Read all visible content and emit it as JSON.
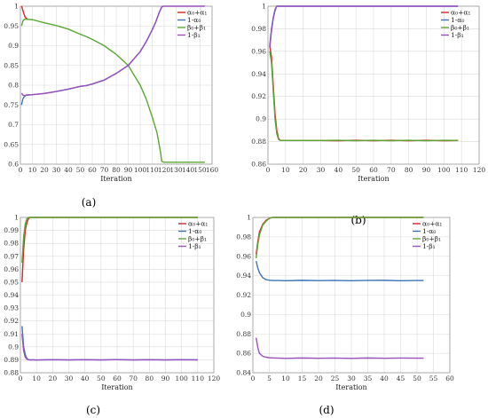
{
  "colors": {
    "alpha_sum": "#d62728",
    "one_minus_alpha0": "#3a74b7",
    "beta_sum": "#5aa832",
    "one_minus_beta1": "#9b4fbd",
    "grid": "#d9d9d9",
    "axis": "#999999"
  },
  "chart_data": [
    {
      "id": "a",
      "type": "line",
      "caption": "(a)",
      "title": "",
      "xlabel": "Iteration",
      "ylabel": "",
      "xlim": [
        0,
        160
      ],
      "ylim": [
        0.6,
        1.0
      ],
      "xticks": [
        0,
        10,
        20,
        30,
        40,
        50,
        60,
        70,
        80,
        90,
        100,
        110,
        120,
        130,
        140,
        150,
        160
      ],
      "yticks": [
        0.6,
        0.65,
        0.7,
        0.75,
        0.8,
        0.85,
        0.9,
        0.95,
        1
      ],
      "ytick_labels": [
        "0.6",
        "0.65",
        "0.7",
        "0.75",
        "0.8",
        "0.85",
        "0.9",
        "0.95",
        "1"
      ],
      "grid": true,
      "legend": "top-right",
      "series": [
        {
          "name": "α₀+α₁",
          "color_key": "alpha_sum",
          "x": [
            1,
            2,
            3,
            4,
            5,
            6
          ],
          "y": [
            1.0,
            0.99,
            0.98,
            0.972,
            0.969,
            0.968
          ]
        },
        {
          "name": "1-α₀",
          "color_key": "one_minus_alpha0",
          "x": [
            1,
            2,
            3,
            4,
            5,
            10,
            20,
            30,
            40,
            50,
            55,
            60,
            70,
            80,
            90,
            100,
            105,
            110,
            113,
            116,
            118,
            119
          ],
          "y": [
            0.75,
            0.765,
            0.77,
            0.773,
            0.775,
            0.776,
            0.779,
            0.784,
            0.79,
            0.797,
            0.799,
            0.803,
            0.813,
            0.83,
            0.85,
            0.885,
            0.91,
            0.94,
            0.96,
            0.985,
            0.998,
            1.0
          ]
        },
        {
          "name": "β₀+β₁",
          "color_key": "beta_sum",
          "x": [
            1,
            2,
            3,
            4,
            5,
            10,
            20,
            30,
            40,
            50,
            55,
            60,
            70,
            80,
            90,
            100,
            105,
            110,
            114,
            117,
            118,
            120,
            130,
            140,
            150,
            154
          ],
          "y": [
            0.95,
            0.962,
            0.966,
            0.967,
            0.967,
            0.966,
            0.958,
            0.951,
            0.942,
            0.929,
            0.923,
            0.916,
            0.9,
            0.878,
            0.85,
            0.8,
            0.765,
            0.72,
            0.68,
            0.63,
            0.607,
            0.605,
            0.605,
            0.605,
            0.605,
            0.605
          ]
        },
        {
          "name": "1-β₁",
          "color_key": "one_minus_beta1",
          "x": [
            1,
            2,
            3,
            4,
            5,
            10,
            20,
            30,
            40,
            50,
            55,
            60,
            70,
            80,
            90,
            100,
            105,
            110,
            113,
            116,
            118,
            119,
            120,
            130,
            140,
            150,
            154
          ],
          "y": [
            0.78,
            0.775,
            0.774,
            0.774,
            0.775,
            0.776,
            0.779,
            0.784,
            0.79,
            0.797,
            0.799,
            0.803,
            0.813,
            0.83,
            0.85,
            0.885,
            0.91,
            0.94,
            0.96,
            0.985,
            0.998,
            1.0,
            1.0,
            1.0,
            1.0,
            1.0,
            1.0
          ]
        }
      ]
    },
    {
      "id": "b",
      "type": "line",
      "caption": "(b)",
      "title": "",
      "xlabel": "Iteration",
      "ylabel": "",
      "xlim": [
        0,
        120
      ],
      "ylim": [
        0.86,
        1.0
      ],
      "xticks": [
        0,
        10,
        20,
        30,
        40,
        50,
        60,
        70,
        80,
        90,
        100,
        110,
        120
      ],
      "yticks": [
        0.86,
        0.88,
        0.9,
        0.92,
        0.94,
        0.96,
        0.98,
        1
      ],
      "ytick_labels": [
        "0.86",
        "0.88",
        "0.9",
        "0.92",
        "0.94",
        "0.96",
        "0.98",
        "1"
      ],
      "grid": true,
      "legend": "top-right",
      "series": [
        {
          "name": "α₀+α₁",
          "color_key": "alpha_sum",
          "x": [
            1,
            2,
            3,
            4,
            5,
            6,
            7,
            8,
            10,
            20,
            30,
            40,
            50,
            60,
            70,
            80,
            90,
            100,
            108
          ],
          "y": [
            0.965,
            0.955,
            0.93,
            0.905,
            0.89,
            0.883,
            0.881,
            0.881,
            0.881,
            0.881,
            0.881,
            0.8808,
            0.8812,
            0.8808,
            0.8812,
            0.8808,
            0.8812,
            0.8808,
            0.881
          ]
        },
        {
          "name": "1-α₀",
          "color_key": "one_minus_alpha0",
          "x": [
            1,
            2,
            3,
            4,
            5,
            6,
            7,
            8,
            10,
            20,
            30,
            40,
            50,
            60,
            70,
            80,
            90,
            100,
            108
          ],
          "y": [
            0.965,
            0.98,
            0.99,
            0.997,
            1.0,
            1.0,
            1.0,
            1.0,
            1.0,
            1.0,
            1.0,
            1.0,
            1.0,
            1.0,
            1.0,
            1.0,
            1.0,
            1.0,
            1.0
          ]
        },
        {
          "name": "β₀+β₁",
          "color_key": "beta_sum",
          "x": [
            1,
            2,
            3,
            4,
            5,
            6,
            7,
            8,
            10,
            20,
            30,
            40,
            50,
            60,
            70,
            80,
            90,
            100,
            108
          ],
          "y": [
            0.96,
            0.95,
            0.925,
            0.9,
            0.887,
            0.882,
            0.881,
            0.881,
            0.881,
            0.881,
            0.881,
            0.8812,
            0.8808,
            0.8812,
            0.8808,
            0.8812,
            0.8808,
            0.8812,
            0.881
          ]
        },
        {
          "name": "1-β₁",
          "color_key": "one_minus_beta1",
          "x": [
            1,
            2,
            3,
            4,
            5,
            6,
            7,
            8,
            10,
            20,
            30,
            40,
            50,
            60,
            70,
            80,
            90,
            100,
            108
          ],
          "y": [
            0.963,
            0.978,
            0.989,
            0.996,
            1.0,
            1.0,
            1.0,
            1.0,
            1.0,
            1.0,
            1.0,
            1.0,
            1.0,
            1.0,
            1.0,
            1.0,
            1.0,
            1.0,
            1.0
          ]
        }
      ]
    },
    {
      "id": "c",
      "type": "line",
      "caption": "(c)",
      "title": "",
      "xlabel": "Iteration",
      "ylabel": "",
      "xlim": [
        0,
        120
      ],
      "ylim": [
        0.88,
        1.0
      ],
      "xticks": [
        0,
        10,
        20,
        30,
        40,
        50,
        60,
        70,
        80,
        90,
        100,
        110,
        120
      ],
      "yticks": [
        0.88,
        0.89,
        0.9,
        0.91,
        0.92,
        0.93,
        0.94,
        0.95,
        0.96,
        0.97,
        0.98,
        0.99,
        1
      ],
      "ytick_labels": [
        "0.88",
        "0.89",
        "0.9",
        "0.91",
        "0.92",
        "0.93",
        "0.94",
        "0.95",
        "0.96",
        "0.97",
        "0.98",
        "0.99",
        "1"
      ],
      "grid": true,
      "legend": "top-right",
      "series": [
        {
          "name": "α₀+α₁",
          "color_key": "alpha_sum",
          "x": [
            1,
            2,
            3,
            4,
            5,
            6,
            8,
            10,
            20,
            40,
            60,
            80,
            100,
            110
          ],
          "y": [
            0.95,
            0.975,
            0.99,
            0.996,
            0.999,
            1.0,
            1.0,
            1.0,
            1.0,
            1.0,
            1.0,
            1.0,
            1.0,
            1.0
          ]
        },
        {
          "name": "1-α₀",
          "color_key": "one_minus_alpha0",
          "x": [
            1,
            2,
            3,
            4,
            5,
            6,
            8,
            10,
            20,
            30,
            40,
            50,
            60,
            70,
            80,
            90,
            100,
            110
          ],
          "y": [
            0.916,
            0.9,
            0.894,
            0.891,
            0.8902,
            0.89,
            0.89,
            0.8898,
            0.8901,
            0.8899,
            0.8901,
            0.8899,
            0.8901,
            0.8899,
            0.8901,
            0.8899,
            0.8901,
            0.89
          ]
        },
        {
          "name": "β₀+β₁",
          "color_key": "beta_sum",
          "x": [
            1,
            2,
            3,
            4,
            5,
            6,
            8,
            10,
            20,
            40,
            60,
            80,
            100,
            110
          ],
          "y": [
            0.965,
            0.985,
            0.995,
            0.999,
            1.0,
            1.0,
            1.0,
            1.0,
            1.0,
            1.0,
            1.0,
            1.0,
            1.0,
            1.0
          ]
        },
        {
          "name": "1-β₁",
          "color_key": "one_minus_beta1",
          "x": [
            1,
            2,
            3,
            4,
            5,
            6,
            8,
            10,
            20,
            30,
            40,
            50,
            60,
            70,
            80,
            90,
            100,
            110
          ],
          "y": [
            0.91,
            0.897,
            0.892,
            0.8905,
            0.89,
            0.8898,
            0.89,
            0.8899,
            0.8901,
            0.8899,
            0.8901,
            0.8899,
            0.8901,
            0.8899,
            0.8901,
            0.8899,
            0.8901,
            0.8899
          ]
        }
      ]
    },
    {
      "id": "d",
      "type": "line",
      "caption": "(d)",
      "title": "",
      "xlabel": "Iteration",
      "ylabel": "",
      "xlim": [
        0,
        60
      ],
      "ylim": [
        0.84,
        1.0
      ],
      "xticks": [
        0,
        5,
        10,
        15,
        20,
        25,
        30,
        35,
        40,
        45,
        50,
        55,
        60
      ],
      "yticks": [
        0.84,
        0.86,
        0.88,
        0.9,
        0.92,
        0.94,
        0.96,
        0.98,
        1
      ],
      "ytick_labels": [
        "0.84",
        "0.86",
        "0.88",
        "0.9",
        "0.92",
        "0.94",
        "0.96",
        "0.98",
        "1"
      ],
      "grid": true,
      "legend": "top-right",
      "series": [
        {
          "name": "α₀+α₁",
          "color_key": "alpha_sum",
          "x": [
            1,
            1.5,
            2,
            3,
            4,
            5,
            6,
            8,
            10,
            20,
            30,
            40,
            52
          ],
          "y": [
            0.962,
            0.975,
            0.985,
            0.993,
            0.997,
            0.999,
            1.0,
            1.0,
            1.0,
            1.0,
            1.0,
            1.0,
            1.0
          ]
        },
        {
          "name": "1-α₀",
          "color_key": "one_minus_alpha0",
          "x": [
            1,
            1.5,
            2,
            3,
            4,
            5,
            6,
            8,
            10,
            15,
            20,
            25,
            30,
            35,
            40,
            45,
            50,
            52
          ],
          "y": [
            0.955,
            0.948,
            0.943,
            0.938,
            0.936,
            0.9353,
            0.935,
            0.935,
            0.9348,
            0.9352,
            0.9349,
            0.9351,
            0.9348,
            0.9351,
            0.9352,
            0.9348,
            0.935,
            0.935
          ]
        },
        {
          "name": "β₀+β₁",
          "color_key": "beta_sum",
          "x": [
            1,
            1.5,
            2,
            3,
            4,
            5,
            6,
            8,
            10,
            20,
            30,
            40,
            52
          ],
          "y": [
            0.958,
            0.972,
            0.982,
            0.992,
            0.996,
            0.999,
            1.0,
            1.0,
            1.0,
            1.0,
            1.0,
            1.0,
            1.0
          ]
        },
        {
          "name": "1-β₁",
          "color_key": "one_minus_beta1",
          "x": [
            1,
            1.5,
            2,
            3,
            4,
            5,
            6,
            8,
            10,
            15,
            20,
            25,
            30,
            35,
            40,
            45,
            50,
            52
          ],
          "y": [
            0.876,
            0.866,
            0.86,
            0.857,
            0.856,
            0.8555,
            0.8553,
            0.855,
            0.8548,
            0.8552,
            0.8549,
            0.8551,
            0.8548,
            0.8552,
            0.8549,
            0.8551,
            0.855,
            0.855
          ]
        }
      ]
    }
  ]
}
